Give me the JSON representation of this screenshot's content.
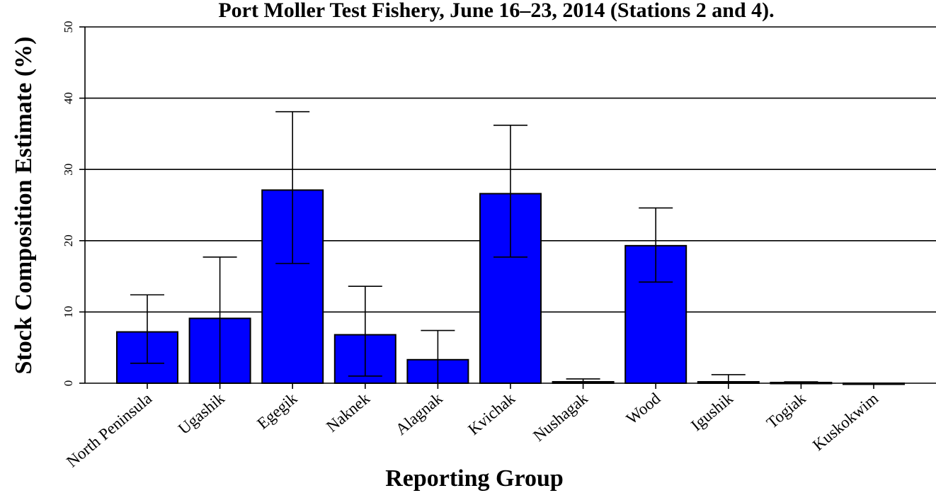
{
  "chart_data": {
    "type": "bar",
    "title": "Port Moller Test Fishery, June 16–23, 2014 (Stations 2 and 4).",
    "xlabel": "Reporting Group",
    "ylabel": "Stock Composition Estimate (%)",
    "categories": [
      "North Peninsula",
      "Ugashik",
      "Egegik",
      "Naknek",
      "Alagnak",
      "Kvichak",
      "Nushagak",
      "Wood",
      "Igushik",
      "Togiak",
      "Kuskokwim"
    ],
    "values": [
      7.2,
      9.1,
      27.1,
      6.8,
      3.3,
      26.6,
      0.2,
      19.3,
      0.2,
      0.1,
      0.0
    ],
    "lower": [
      2.8,
      0.0,
      16.8,
      1.0,
      0.0,
      17.7,
      0.0,
      14.2,
      0.0,
      0.0,
      0.0
    ],
    "upper": [
      12.4,
      17.7,
      38.1,
      13.6,
      7.4,
      36.2,
      0.6,
      24.6,
      1.2,
      0.2,
      0.0
    ],
    "ylim": [
      0,
      50
    ],
    "yticks": [
      0,
      10,
      20,
      30,
      40,
      50
    ],
    "grid": true,
    "bar_color": "#0000ff"
  }
}
